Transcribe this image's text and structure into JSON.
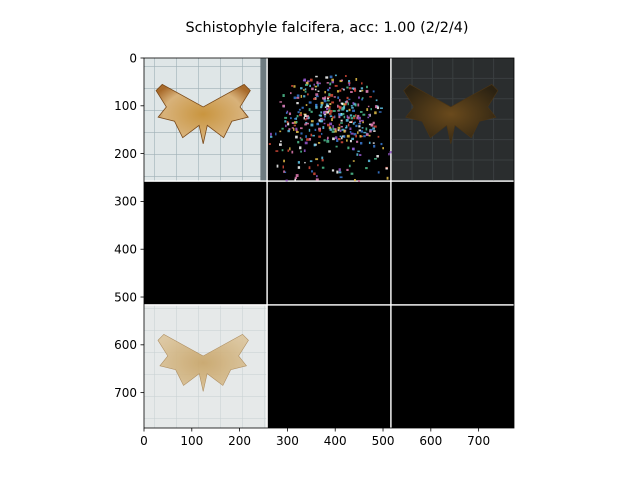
{
  "chart_data": {
    "type": "image-grid",
    "title": "Schistophyle falcifera, acc: 1.00 (2/2/4)",
    "xlim": [
      0,
      774
    ],
    "ylim": [
      0,
      774
    ],
    "y_inverted": true,
    "grid": false,
    "grid_shape": [
      3,
      3
    ],
    "tile_size": 256,
    "separator_color": "#ffffff",
    "x_ticks": [
      {
        "value": 0,
        "label": "0"
      },
      {
        "value": 100,
        "label": "100"
      },
      {
        "value": 200,
        "label": "200"
      },
      {
        "value": 300,
        "label": "300"
      },
      {
        "value": 400,
        "label": "400"
      },
      {
        "value": 500,
        "label": "500"
      },
      {
        "value": 600,
        "label": "600"
      },
      {
        "value": 700,
        "label": "700"
      }
    ],
    "y_ticks": [
      {
        "value": 0,
        "label": "0"
      },
      {
        "value": 100,
        "label": "100"
      },
      {
        "value": 200,
        "label": "200"
      },
      {
        "value": 300,
        "label": "300"
      },
      {
        "value": 400,
        "label": "400"
      },
      {
        "value": 500,
        "label": "500"
      },
      {
        "value": 600,
        "label": "600"
      },
      {
        "value": 700,
        "label": "700"
      }
    ],
    "tiles": [
      {
        "row": 0,
        "col": 0,
        "kind": "photo",
        "subject": "moth specimen on grid paper",
        "tone": "original"
      },
      {
        "row": 0,
        "col": 1,
        "kind": "saliency",
        "subject": "colored attribution speckles on black",
        "tone": "speckle"
      },
      {
        "row": 0,
        "col": 2,
        "kind": "photo",
        "subject": "moth specimen darkened overlay",
        "tone": "dark"
      },
      {
        "row": 1,
        "col": 0,
        "kind": "blank",
        "tone": "black"
      },
      {
        "row": 1,
        "col": 1,
        "kind": "blank",
        "tone": "black"
      },
      {
        "row": 1,
        "col": 2,
        "kind": "blank",
        "tone": "black"
      },
      {
        "row": 2,
        "col": 0,
        "kind": "photo",
        "subject": "moth specimen faded on grid paper",
        "tone": "faded"
      },
      {
        "row": 2,
        "col": 1,
        "kind": "blank",
        "tone": "black"
      },
      {
        "row": 2,
        "col": 2,
        "kind": "blank",
        "tone": "black"
      }
    ]
  }
}
